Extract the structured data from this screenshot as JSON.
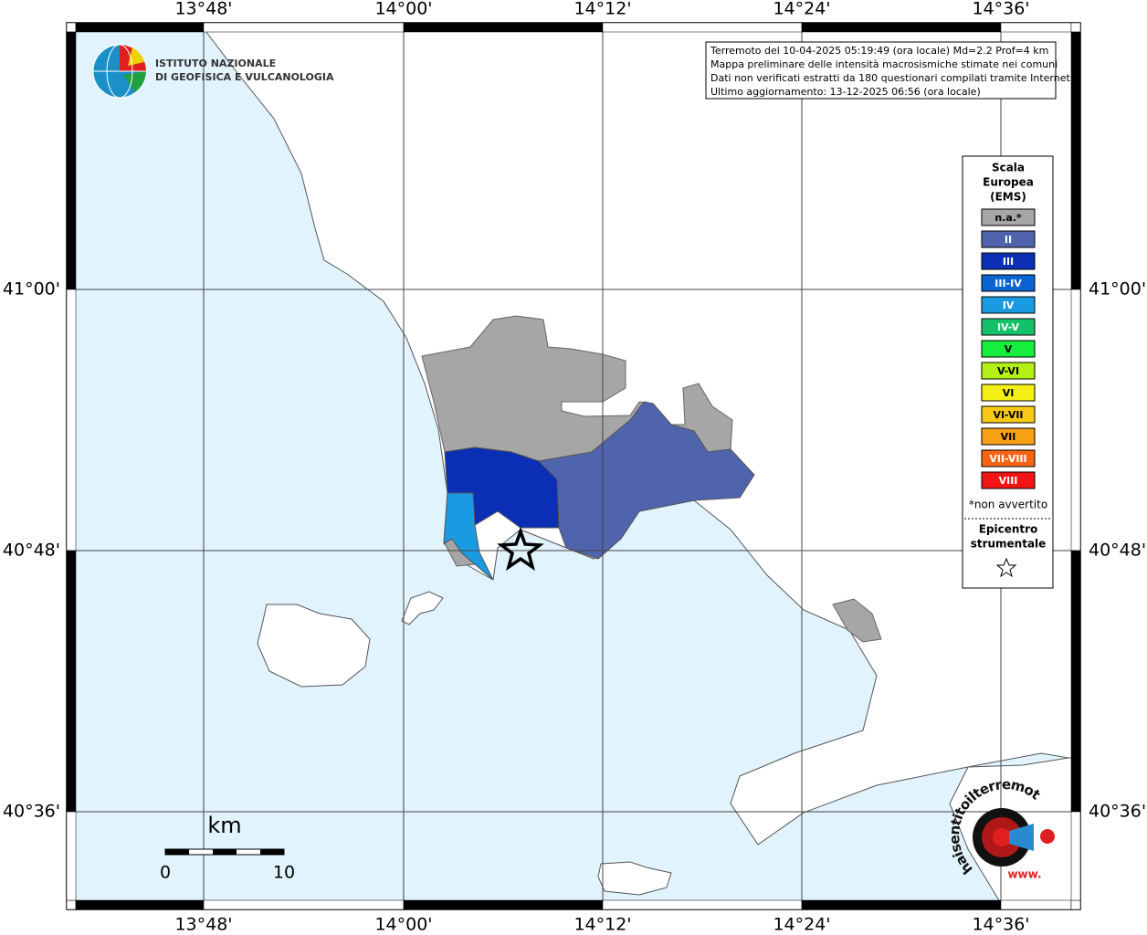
{
  "map": {
    "x_labels": [
      "13°48'",
      "14°00'",
      "14°12'",
      "14°24'",
      "14°36'"
    ],
    "y_labels": [
      "41°00'",
      "40°48'",
      "40°36'"
    ],
    "info": [
      "Terremoto del 10-04-2025 05:19:49 (ora locale) Md=2.2 Prof=4 km",
      "Mappa preliminare delle intensità macrosismiche stimate nei comuni",
      "Dati non verificati estratti da 180 questionari compilati tramite Internet.",
      "Ultimo aggiornamento: 13-12-2025 06:56 (ora locale)"
    ],
    "legend": {
      "title": [
        "Scala",
        "Europea",
        "(EMS)"
      ],
      "items": [
        {
          "label": "n.a.*",
          "color": "#a6a6a6"
        },
        {
          "label": "II",
          "color": "#5064ad"
        },
        {
          "label": "III",
          "color": "#0a2fb4"
        },
        {
          "label": "III-IV",
          "color": "#0a64d2"
        },
        {
          "label": "IV",
          "color": "#1a9ae0"
        },
        {
          "label": "IV-V",
          "color": "#14c06a"
        },
        {
          "label": "V",
          "color": "#14ee3c"
        },
        {
          "label": "V-VI",
          "color": "#b4f014"
        },
        {
          "label": "VI",
          "color": "#f5f014"
        },
        {
          "label": "VI-VII",
          "color": "#f8c814"
        },
        {
          "label": "VII",
          "color": "#f8a014"
        },
        {
          "label": "VII-VIII",
          "color": "#f86414"
        },
        {
          "label": "VIII",
          "color": "#f01414"
        }
      ],
      "note": "*non avvertito",
      "epicenter": [
        "Epicentro",
        "strumentale"
      ]
    },
    "scale_bar": {
      "unit": "km",
      "start": "0",
      "end": "10"
    },
    "logo": [
      "ISTITUTO NAZIONALE",
      "DI GEOFISICA E VULCANOLOGIA"
    ],
    "site_logo": {
      "name": "haisentitoilterremoto.it",
      "www": "www."
    }
  }
}
